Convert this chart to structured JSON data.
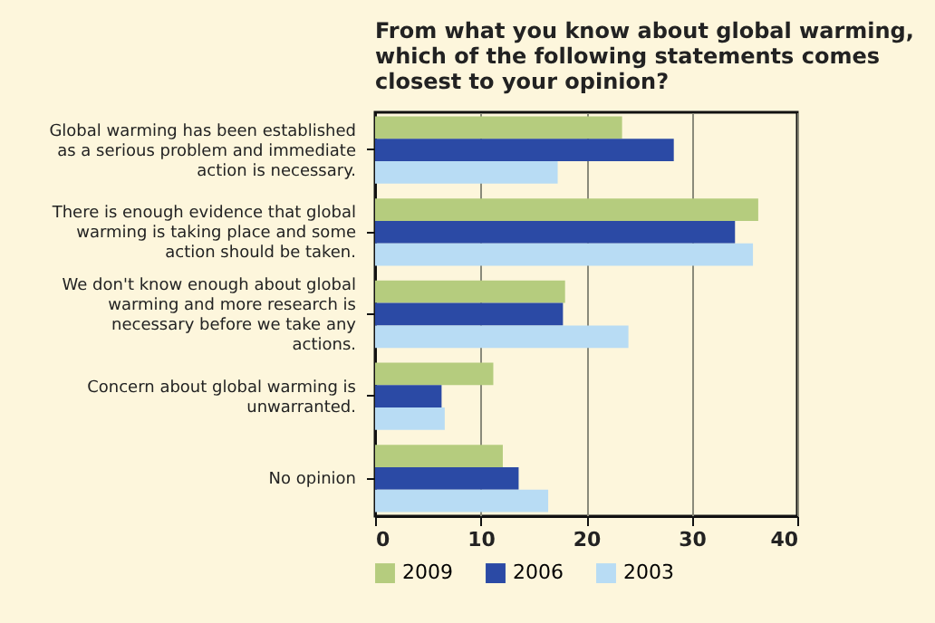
{
  "chart_data": {
    "type": "bar",
    "orientation": "horizontal",
    "title": "From what you know about global warming, which of the following statements comes closest to your opinion?",
    "categories": [
      "Global warming has been established as a serious problem and immediate action is necessary.",
      "There is enough evidence that global warming is taking place and some action should be taken.",
      "We don't know enough about global warming and more research is necessary before we take any actions.",
      "Concern about global warming is unwarranted.",
      "No opinion"
    ],
    "series": [
      {
        "name": "2009",
        "color": "#b5cc7e",
        "values": [
          23.4,
          36.3,
          18.0,
          11.2,
          12.1
        ]
      },
      {
        "name": "2006",
        "color": "#2b4aa5",
        "values": [
          28.3,
          34.1,
          17.8,
          6.3,
          13.6
        ]
      },
      {
        "name": "2003",
        "color": "#b8dcf4",
        "values": [
          17.3,
          35.8,
          24.0,
          6.6,
          16.4
        ]
      }
    ],
    "xlim": [
      0,
      40
    ],
    "xticks": [
      0,
      10,
      20,
      30,
      40
    ],
    "grid": "x",
    "legend": "bottom"
  }
}
